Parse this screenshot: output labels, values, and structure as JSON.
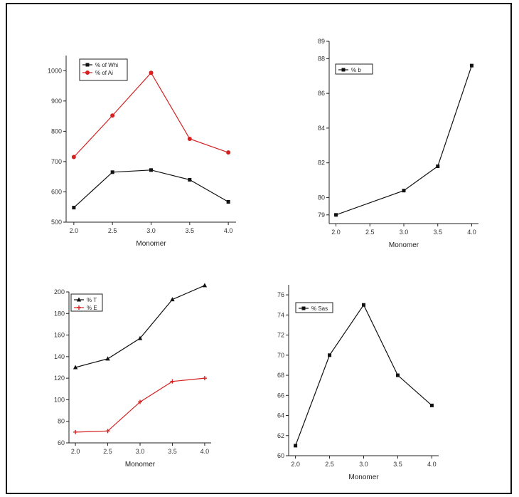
{
  "chart_data": [
    {
      "type": "line",
      "xlabel": "Monomer",
      "ylabel": "",
      "xlim": [
        1.9,
        4.1
      ],
      "ylim": [
        500,
        1050
      ],
      "xticks": [
        2.0,
        2.5,
        3.0,
        3.5,
        4.0
      ],
      "xtick_labels": [
        "2.0",
        "2.5",
        "3.0",
        "3.5",
        "4.0"
      ],
      "yticks": [
        500,
        600,
        700,
        800,
        900,
        1000
      ],
      "ytick_labels": [
        "500",
        "600",
        "700",
        "800",
        "900",
        "1000"
      ],
      "legend": "top-left",
      "x": [
        2.0,
        2.5,
        3.0,
        3.5,
        4.0
      ],
      "series": [
        {
          "name": "% of Whi",
          "color": "#111111",
          "marker": "square",
          "values": [
            548,
            665,
            672,
            640,
            567
          ]
        },
        {
          "name": "% of Ai",
          "color": "#d42020",
          "marker": "circle",
          "values": [
            715,
            852,
            993,
            775,
            730
          ]
        }
      ]
    },
    {
      "type": "line",
      "xlabel": "Monomer",
      "ylabel": "",
      "xlim": [
        1.9,
        4.1
      ],
      "ylim": [
        78.5,
        89.0
      ],
      "xticks": [
        2.0,
        2.5,
        3.0,
        3.5,
        4.0
      ],
      "xtick_labels": [
        "2.0",
        "2.5",
        "3.0",
        "3.5",
        "4.0"
      ],
      "yticks": [
        79,
        80,
        82,
        84,
        86,
        88,
        89
      ],
      "ytick_labels": [
        "79",
        "80",
        "82",
        "84",
        "86",
        "88",
        "89"
      ],
      "legend": "top-left",
      "x": [
        2.0,
        3.0,
        3.5,
        4.0
      ],
      "series": [
        {
          "name": "% b",
          "color": "#111111",
          "marker": "square",
          "values": [
            79.0,
            80.4,
            81.8,
            87.6
          ]
        }
      ]
    },
    {
      "type": "line",
      "xlabel": "Monomer",
      "ylabel": "",
      "xlim": [
        1.9,
        4.1
      ],
      "ylim": [
        60,
        200
      ],
      "xticks": [
        2.0,
        2.5,
        3.0,
        3.5,
        4.0
      ],
      "xtick_labels": [
        "2.0",
        "2.5",
        "3.0",
        "3.5",
        "4.0"
      ],
      "yticks": [
        60,
        80,
        100,
        120,
        140,
        160,
        180,
        200
      ],
      "ytick_labels": [
        "60",
        "80",
        "100",
        "120",
        "140",
        "160",
        "180",
        "200"
      ],
      "legend": "top-left",
      "x": [
        2.0,
        2.5,
        3.0,
        3.5,
        4.0
      ],
      "series": [
        {
          "name": "% T",
          "color": "#111111",
          "marker": "triangle",
          "values": [
            130,
            138,
            157,
            193,
            206
          ]
        },
        {
          "name": "% E",
          "color": "#d42020",
          "marker": "plus",
          "values": [
            70,
            71,
            98,
            117,
            120
          ]
        }
      ]
    },
    {
      "type": "line",
      "xlabel": "Monomer",
      "ylabel": "",
      "xlim": [
        1.9,
        4.1
      ],
      "ylim": [
        60,
        77
      ],
      "xticks": [
        2.0,
        2.5,
        3.0,
        3.5,
        4.0
      ],
      "xtick_labels": [
        "2.0",
        "2.5",
        "3.0",
        "3.5",
        "4.0"
      ],
      "yticks": [
        60,
        62,
        64,
        66,
        68,
        70,
        72,
        74,
        76
      ],
      "ytick_labels": [
        "60",
        "62",
        "64",
        "66",
        "68",
        "70",
        "72",
        "74",
        "76"
      ],
      "legend": "top-left",
      "x": [
        2.0,
        2.5,
        3.0,
        3.5,
        4.0
      ],
      "series": [
        {
          "name": "% Sas",
          "color": "#111111",
          "marker": "square",
          "values": [
            61,
            70,
            75,
            68,
            65
          ]
        }
      ]
    }
  ]
}
